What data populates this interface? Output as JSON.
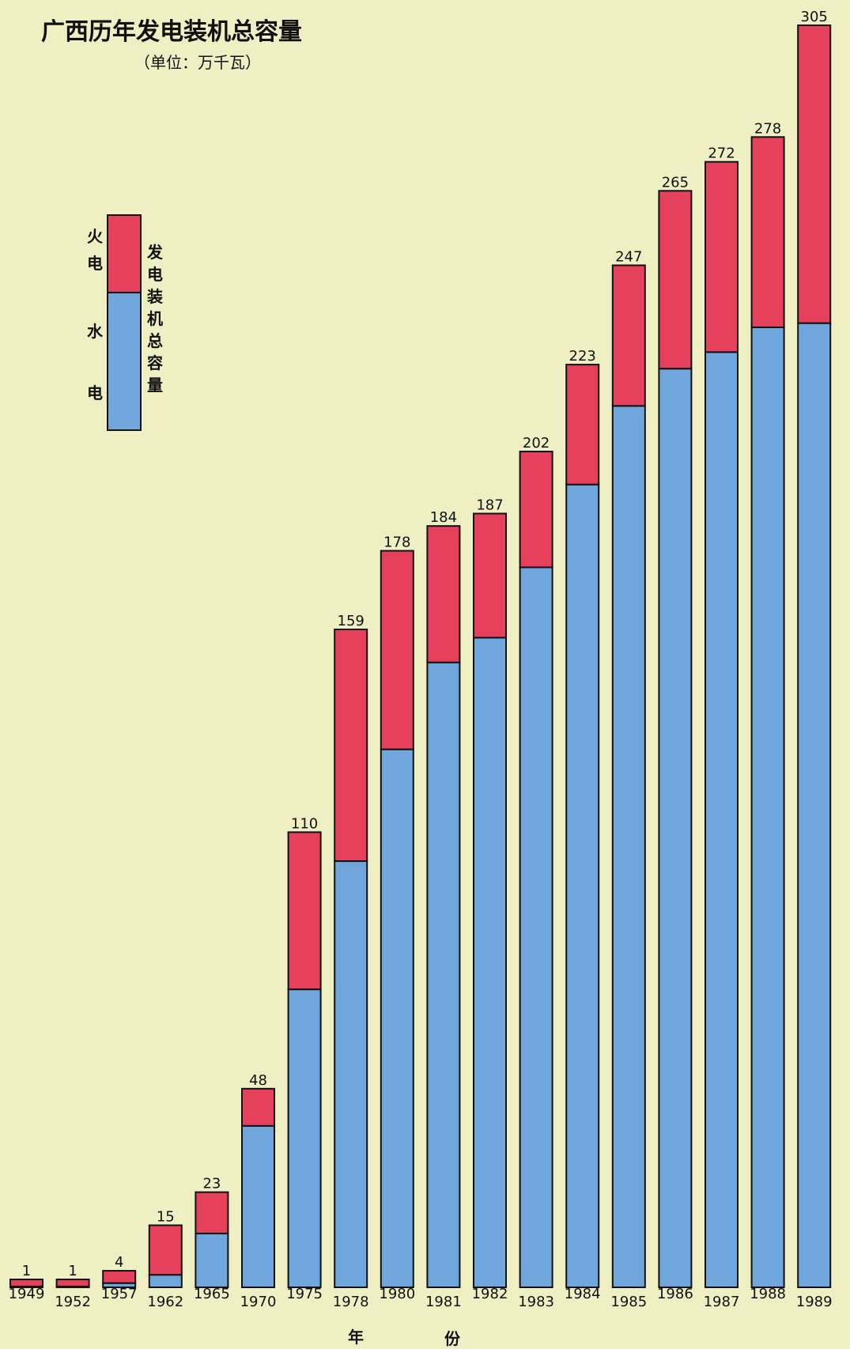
{
  "chart_data": {
    "type": "bar",
    "stacked": true,
    "title": "广西历年发电装机总容量",
    "subtitle": "（单位：万千瓦）",
    "xlabel": [
      "年",
      "份"
    ],
    "categories": [
      "1949",
      "1952",
      "1957",
      "1962",
      "1965",
      "1970",
      "1975",
      "1978",
      "1980",
      "1981",
      "1982",
      "1983",
      "1984",
      "1985",
      "1986",
      "1987",
      "1988",
      "1989"
    ],
    "totals": [
      1,
      1,
      4,
      15,
      23,
      48,
      110,
      159,
      178,
      184,
      187,
      202,
      223,
      247,
      265,
      272,
      278,
      305
    ],
    "series": [
      {
        "name": "水电",
        "color": "#6fa6dc",
        "values": [
          0.2,
          0.2,
          1,
          3,
          13,
          39,
          72,
          103,
          130,
          151,
          157,
          174,
          194,
          213,
          222,
          226,
          232,
          233
        ]
      },
      {
        "name": "火电",
        "color": "#e5405c",
        "values": [
          0.8,
          0.8,
          3,
          12,
          10,
          9,
          38,
          56,
          48,
          33,
          30,
          28,
          29,
          34,
          43,
          46,
          46,
          72
        ]
      }
    ],
    "legend": {
      "items": [
        "火电",
        "水电"
      ],
      "caption": "发电装机总容量",
      "placement": "top-left"
    },
    "ylim": [
      0,
      305
    ]
  }
}
